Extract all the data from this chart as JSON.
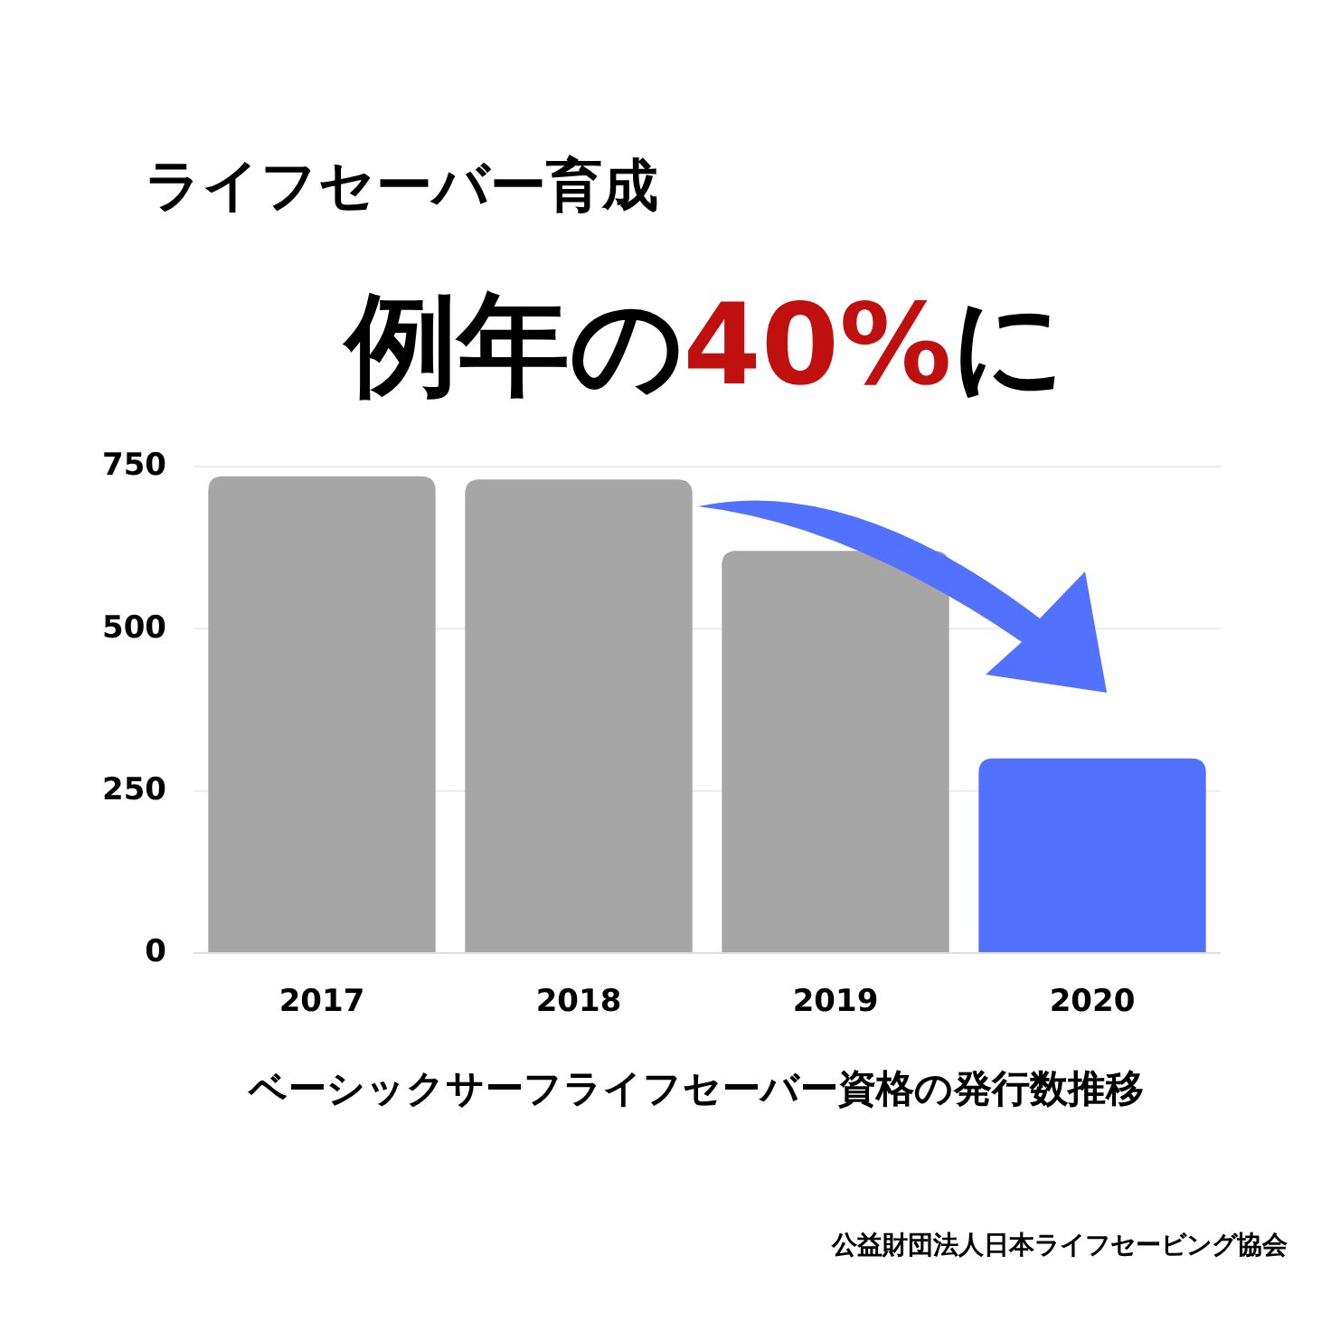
{
  "chart_data": {
    "type": "bar",
    "title": "ライフセーバー育成",
    "subtitle": "例年の40%に",
    "xlabel": "ベーシックサーフライフセーバー資格の発行数推移",
    "categories": [
      "2017",
      "2018",
      "2019",
      "2020"
    ],
    "values": [
      735,
      730,
      620,
      300
    ],
    "colors": [
      "#a6a6a6",
      "#a6a6a6",
      "#a6a6a6",
      "#5271ff"
    ],
    "ylim": [
      0,
      750
    ],
    "yticks": [
      0,
      250,
      500,
      750
    ],
    "grid": "y",
    "annotations": [
      "公益財団法人日本ライフセービング協会"
    ]
  }
}
